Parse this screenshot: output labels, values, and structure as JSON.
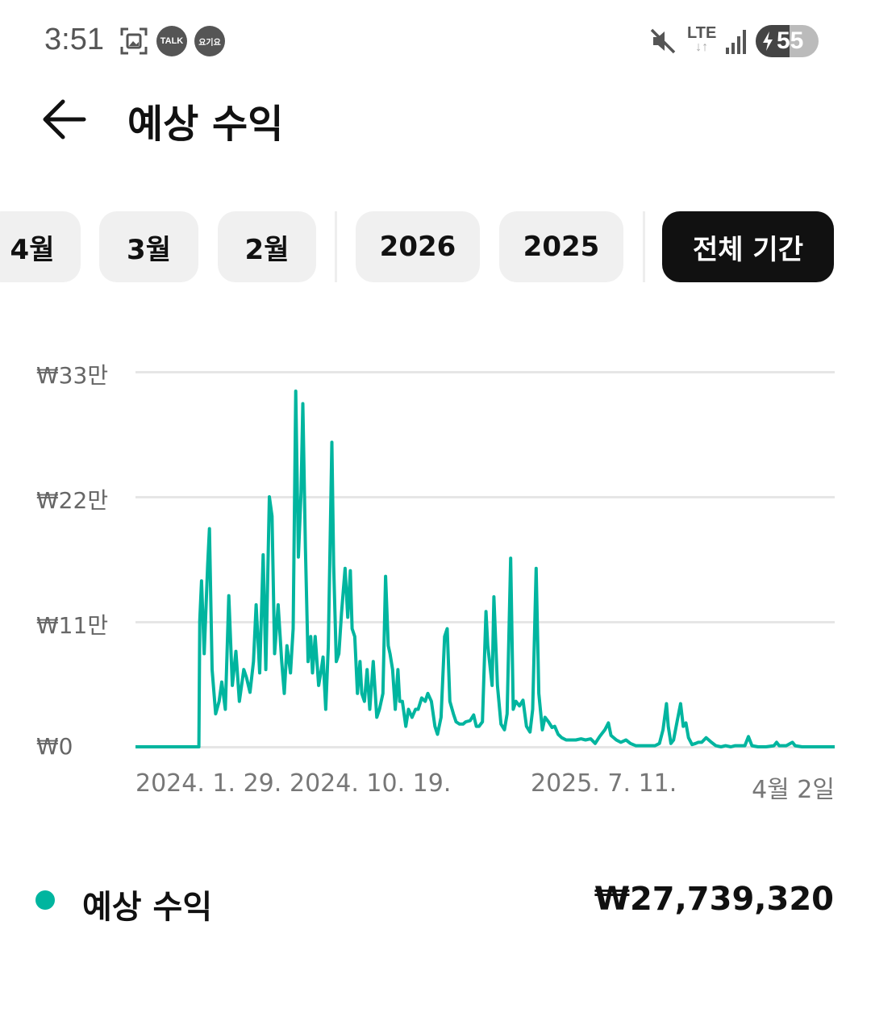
{
  "status_bar": {
    "time": "3:51",
    "icons": [
      "screenshot-icon",
      "kakaotalk-icon",
      "yogiyo-icon",
      "mute-icon",
      "lte-icon",
      "signal-icon",
      "battery-charging-icon"
    ],
    "talk_label": "TALK",
    "yogiyo_label": "요기요",
    "network": "LTE",
    "battery": "55"
  },
  "header": {
    "title": "예상 수익",
    "back_icon": "arrow-left-icon"
  },
  "filters": {
    "chips": [
      "4월",
      "3월",
      "2월",
      "2026",
      "2025",
      "전체 기간"
    ],
    "selected": "전체 기간"
  },
  "colors": {
    "series": "#00b59f",
    "selected_chip": "#111111",
    "chip": "#f0f0f0",
    "grid": "#e6e6e6"
  },
  "chart_data": {
    "type": "line",
    "title": "",
    "xlabel": "",
    "ylabel": "",
    "ylim": [
      0,
      330000
    ],
    "xlim": [
      "2024-01-29",
      "2026-04-02"
    ],
    "grid": true,
    "y_ticks": [
      {
        "value": 0,
        "label": "₩0"
      },
      {
        "value": 110000,
        "label": "₩11만"
      },
      {
        "value": 220000,
        "label": "₩22만"
      },
      {
        "value": 330000,
        "label": "₩33만"
      }
    ],
    "x_ticks": [
      {
        "date": "2024-01-29",
        "label": "2024. 1. 29."
      },
      {
        "date": "2024-10-19",
        "label": "2024. 10. 19."
      },
      {
        "date": "2025-07-11",
        "label": "2025. 7. 11."
      },
      {
        "date": "2026-04-02",
        "label": "4월 2일"
      }
    ],
    "series": [
      {
        "name": "예상 수익",
        "points": [
          [
            "2024-01-29",
            0
          ],
          [
            "2024-04-10",
            0
          ],
          [
            "2024-04-11",
            111000
          ],
          [
            "2024-04-13",
            146000
          ],
          [
            "2024-04-16",
            82000
          ],
          [
            "2024-04-20",
            160000
          ],
          [
            "2024-04-22",
            192000
          ],
          [
            "2024-04-25",
            68000
          ],
          [
            "2024-04-29",
            29000
          ],
          [
            "2024-05-03",
            40000
          ],
          [
            "2024-05-06",
            57000
          ],
          [
            "2024-05-10",
            33000
          ],
          [
            "2024-05-14",
            133000
          ],
          [
            "2024-05-18",
            54000
          ],
          [
            "2024-05-22",
            84000
          ],
          [
            "2024-05-26",
            40000
          ],
          [
            "2024-05-31",
            68000
          ],
          [
            "2024-06-03",
            61000
          ],
          [
            "2024-06-07",
            48000
          ],
          [
            "2024-06-11",
            75000
          ],
          [
            "2024-06-14",
            125000
          ],
          [
            "2024-06-18",
            65000
          ],
          [
            "2024-06-22",
            169000
          ],
          [
            "2024-06-25",
            68000
          ],
          [
            "2024-06-29",
            220000
          ],
          [
            "2024-07-02",
            203000
          ],
          [
            "2024-07-05",
            82000
          ],
          [
            "2024-07-09",
            125000
          ],
          [
            "2024-07-13",
            75000
          ],
          [
            "2024-07-16",
            47000
          ],
          [
            "2024-07-19",
            89000
          ],
          [
            "2024-07-23",
            65000
          ],
          [
            "2024-07-26",
            104000
          ],
          [
            "2024-07-29",
            313000
          ],
          [
            "2024-08-01",
            167000
          ],
          [
            "2024-08-04",
            224000
          ],
          [
            "2024-08-06",
            302000
          ],
          [
            "2024-08-09",
            175000
          ],
          [
            "2024-08-12",
            75000
          ],
          [
            "2024-08-15",
            97000
          ],
          [
            "2024-08-17",
            65000
          ],
          [
            "2024-08-20",
            97000
          ],
          [
            "2024-08-24",
            54000
          ],
          [
            "2024-08-27",
            68000
          ],
          [
            "2024-08-29",
            79000
          ],
          [
            "2024-09-01",
            33000
          ],
          [
            "2024-09-04",
            89000
          ],
          [
            "2024-09-08",
            268000
          ],
          [
            "2024-09-10",
            160000
          ],
          [
            "2024-09-13",
            75000
          ],
          [
            "2024-09-16",
            82000
          ],
          [
            "2024-09-19",
            118000
          ],
          [
            "2024-09-23",
            157000
          ],
          [
            "2024-09-26",
            114000
          ],
          [
            "2024-09-29",
            155000
          ],
          [
            "2024-10-01",
            104000
          ],
          [
            "2024-10-04",
            97000
          ],
          [
            "2024-10-07",
            47000
          ],
          [
            "2024-10-10",
            75000
          ],
          [
            "2024-10-12",
            47000
          ],
          [
            "2024-10-15",
            40000
          ],
          [
            "2024-10-18",
            68000
          ],
          [
            "2024-10-21",
            33000
          ],
          [
            "2024-10-25",
            75000
          ],
          [
            "2024-10-29",
            26000
          ],
          [
            "2024-11-01",
            33000
          ],
          [
            "2024-11-05",
            47000
          ],
          [
            "2024-11-08",
            150000
          ],
          [
            "2024-11-11",
            89000
          ],
          [
            "2024-11-13",
            82000
          ],
          [
            "2024-11-16",
            68000
          ],
          [
            "2024-11-19",
            33000
          ],
          [
            "2024-11-22",
            68000
          ],
          [
            "2024-11-24",
            40000
          ],
          [
            "2024-11-27",
            40000
          ],
          [
            "2024-12-01",
            18000
          ],
          [
            "2024-12-04",
            33000
          ],
          [
            "2024-12-08",
            26000
          ],
          [
            "2024-12-12",
            33000
          ],
          [
            "2024-12-15",
            33000
          ],
          [
            "2024-12-19",
            43000
          ],
          [
            "2024-12-23",
            40000
          ],
          [
            "2024-12-26",
            47000
          ],
          [
            "2024-12-30",
            40000
          ],
          [
            "2025-01-03",
            18000
          ],
          [
            "2025-01-06",
            11000
          ],
          [
            "2025-01-10",
            26000
          ],
          [
            "2025-01-14",
            97000
          ],
          [
            "2025-01-17",
            104000
          ],
          [
            "2025-01-20",
            40000
          ],
          [
            "2025-01-24",
            29000
          ],
          [
            "2025-01-27",
            22000
          ],
          [
            "2025-01-31",
            20000
          ],
          [
            "2025-02-04",
            20000
          ],
          [
            "2025-02-07",
            22000
          ],
          [
            "2025-02-12",
            23000
          ],
          [
            "2025-02-16",
            28000
          ],
          [
            "2025-02-19",
            18000
          ],
          [
            "2025-02-22",
            18000
          ],
          [
            "2025-02-26",
            22000
          ],
          [
            "2025-03-02",
            119000
          ],
          [
            "2025-03-04",
            89000
          ],
          [
            "2025-03-06",
            75000
          ],
          [
            "2025-03-09",
            54000
          ],
          [
            "2025-03-11",
            132000
          ],
          [
            "2025-03-15",
            54000
          ],
          [
            "2025-03-19",
            20000
          ],
          [
            "2025-03-23",
            15000
          ],
          [
            "2025-03-26",
            29000
          ],
          [
            "2025-03-30",
            166000
          ],
          [
            "2025-04-02",
            33000
          ],
          [
            "2025-04-05",
            40000
          ],
          [
            "2025-04-09",
            36000
          ],
          [
            "2025-04-13",
            41000
          ],
          [
            "2025-04-17",
            18000
          ],
          [
            "2025-04-21",
            13000
          ],
          [
            "2025-04-24",
            33000
          ],
          [
            "2025-04-28",
            157000
          ],
          [
            "2025-05-01",
            47000
          ],
          [
            "2025-05-05",
            15000
          ],
          [
            "2025-05-08",
            26000
          ],
          [
            "2025-05-12",
            22000
          ],
          [
            "2025-05-16",
            17000
          ],
          [
            "2025-05-19",
            18000
          ],
          [
            "2025-05-23",
            11000
          ],
          [
            "2025-05-27",
            8000
          ],
          [
            "2025-06-01",
            6000
          ],
          [
            "2025-06-07",
            6000
          ],
          [
            "2025-06-12",
            6000
          ],
          [
            "2025-06-18",
            7000
          ],
          [
            "2025-06-23",
            6000
          ],
          [
            "2025-06-29",
            7000
          ],
          [
            "2025-07-04",
            3000
          ],
          [
            "2025-07-09",
            9000
          ],
          [
            "2025-07-15",
            15000
          ],
          [
            "2025-07-19",
            21000
          ],
          [
            "2025-07-22",
            10000
          ],
          [
            "2025-07-28",
            6000
          ],
          [
            "2025-08-02",
            4000
          ],
          [
            "2025-08-08",
            6000
          ],
          [
            "2025-08-13",
            3000
          ],
          [
            "2025-08-19",
            1000
          ],
          [
            "2025-08-24",
            1000
          ],
          [
            "2025-08-30",
            1000
          ],
          [
            "2025-09-04",
            1000
          ],
          [
            "2025-09-10",
            1000
          ],
          [
            "2025-09-15",
            3000
          ],
          [
            "2025-09-19",
            15000
          ],
          [
            "2025-09-23",
            38000
          ],
          [
            "2025-09-25",
            18000
          ],
          [
            "2025-09-28",
            3000
          ],
          [
            "2025-10-01",
            6000
          ],
          [
            "2025-10-05",
            22000
          ],
          [
            "2025-10-09",
            38000
          ],
          [
            "2025-10-12",
            18000
          ],
          [
            "2025-10-15",
            21000
          ],
          [
            "2025-10-18",
            8000
          ],
          [
            "2025-10-22",
            2000
          ],
          [
            "2025-10-26",
            3000
          ],
          [
            "2025-10-29",
            4000
          ],
          [
            "2025-11-02",
            4000
          ],
          [
            "2025-11-07",
            8000
          ],
          [
            "2025-11-13",
            4000
          ],
          [
            "2025-11-18",
            1000
          ],
          [
            "2025-11-24",
            0
          ],
          [
            "2025-11-29",
            1000
          ],
          [
            "2025-12-05",
            0
          ],
          [
            "2025-12-10",
            1000
          ],
          [
            "2025-12-16",
            1000
          ],
          [
            "2025-12-21",
            1000
          ],
          [
            "2025-12-25",
            9000
          ],
          [
            "2025-12-29",
            1000
          ],
          [
            "2026-01-05",
            0
          ],
          [
            "2026-01-14",
            0
          ],
          [
            "2026-01-23",
            1000
          ],
          [
            "2026-01-26",
            4000
          ],
          [
            "2026-01-29",
            1000
          ],
          [
            "2026-02-06",
            1000
          ],
          [
            "2026-02-13",
            4000
          ],
          [
            "2026-02-16",
            1000
          ],
          [
            "2026-02-24",
            0
          ],
          [
            "2026-03-06",
            0
          ],
          [
            "2026-03-15",
            0
          ],
          [
            "2026-03-24",
            0
          ],
          [
            "2026-04-02",
            0
          ]
        ]
      }
    ]
  },
  "summary": {
    "legend_label": "예상 수익",
    "total": "₩27,739,320"
  }
}
